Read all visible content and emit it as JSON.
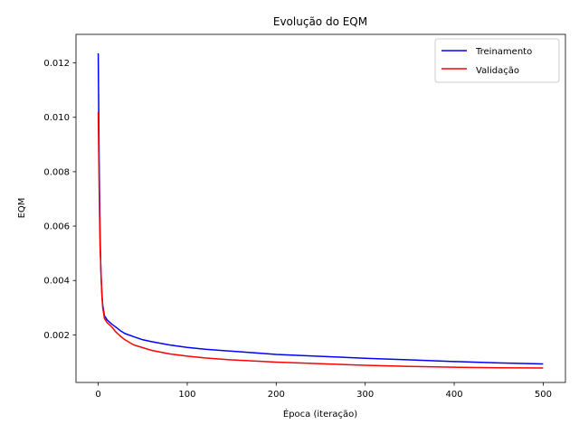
{
  "chart_data": {
    "type": "line",
    "title": "Evolução do EQM",
    "xlabel": "Época (iteração)",
    "ylabel": "EQM",
    "xlim": [
      -25,
      525
    ],
    "ylim": [
      0.00025,
      0.01305
    ],
    "xticks": [
      0,
      100,
      200,
      300,
      400,
      500
    ],
    "yticks": [
      0.002,
      0.004,
      0.006,
      0.008,
      0.01,
      0.012
    ],
    "ytick_labels": [
      "0.002",
      "0.004",
      "0.006",
      "0.008",
      "0.010",
      "0.012"
    ],
    "grid": false,
    "legend_position": "top-right",
    "series": [
      {
        "name": "Treinamento",
        "color": "#0000ff",
        "x": [
          0,
          1,
          2,
          3,
          4,
          5,
          7,
          10,
          15,
          20,
          25,
          30,
          40,
          50,
          60,
          80,
          100,
          120,
          150,
          200,
          250,
          300,
          350,
          400,
          450,
          500
        ],
        "y": [
          0.01235,
          0.0085,
          0.0058,
          0.0043,
          0.0036,
          0.0031,
          0.0027,
          0.00255,
          0.0024,
          0.00228,
          0.00215,
          0.00205,
          0.00193,
          0.00182,
          0.00175,
          0.00163,
          0.00154,
          0.00147,
          0.0014,
          0.00128,
          0.00121,
          0.00114,
          0.00108,
          0.00102,
          0.00097,
          0.00093
        ]
      },
      {
        "name": "Validação",
        "color": "#ff0000",
        "x": [
          0,
          1,
          2,
          3,
          4,
          5,
          7,
          10,
          15,
          20,
          25,
          30,
          40,
          50,
          60,
          80,
          100,
          120,
          150,
          200,
          250,
          300,
          350,
          400,
          450,
          500
        ],
        "y": [
          0.0102,
          0.0075,
          0.0053,
          0.0044,
          0.0035,
          0.003,
          0.0026,
          0.00245,
          0.0023,
          0.0021,
          0.00195,
          0.00182,
          0.00163,
          0.00153,
          0.00143,
          0.0013,
          0.00122,
          0.00115,
          0.00108,
          0.001,
          0.00094,
          0.00088,
          0.00084,
          0.00081,
          0.00079,
          0.00078
        ]
      }
    ]
  }
}
